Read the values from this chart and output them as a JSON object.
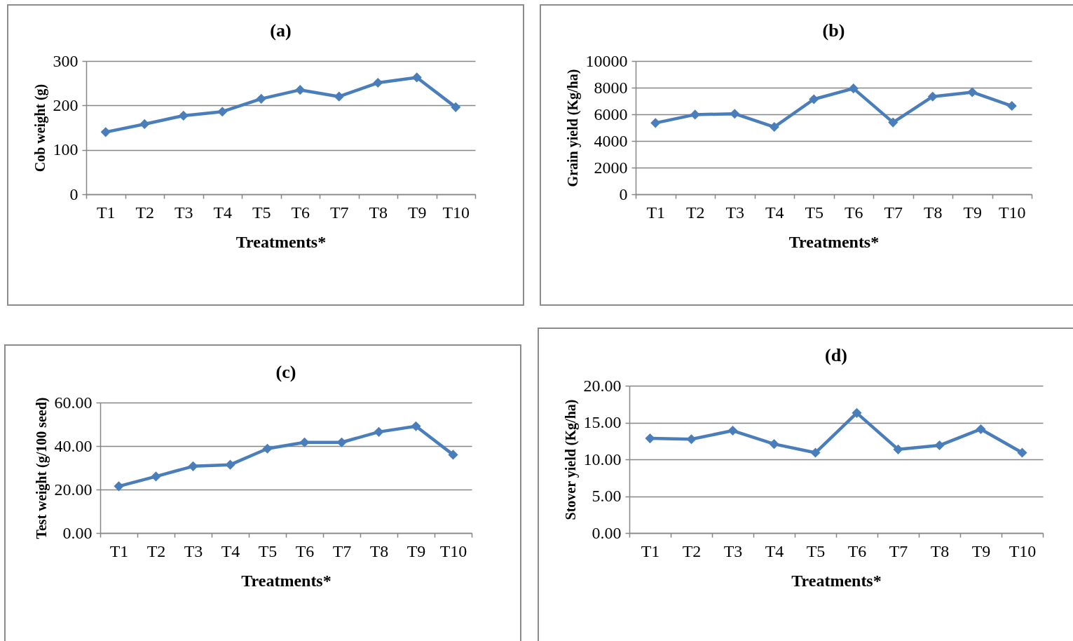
{
  "chart_data": [
    {
      "type": "line",
      "title": "(a)",
      "xlabel": "Treatments*",
      "ylabel": "Cob weight (g)",
      "categories": [
        "T1",
        "T2",
        "T3",
        "T4",
        "T5",
        "T6",
        "T7",
        "T8",
        "T9",
        "T10"
      ],
      "series": [
        {
          "color": "#4a7ebb",
          "values": [
            140,
            158,
            177,
            186,
            215,
            235,
            220,
            251,
            263,
            196
          ]
        }
      ],
      "ylim": [
        0,
        300
      ],
      "yticks": [
        0,
        100,
        200,
        300
      ],
      "grid": "y",
      "marker": "diamond"
    },
    {
      "type": "line",
      "title": "(b)",
      "xlabel": "Treatments*",
      "ylabel": "Grain yield (Kg/ha)",
      "categories": [
        "T1",
        "T2",
        "T3",
        "T4",
        "T5",
        "T6",
        "T7",
        "T8",
        "T9",
        "T10"
      ],
      "series": [
        {
          "color": "#4a7ebb",
          "values": [
            5350,
            5980,
            6040,
            5050,
            7130,
            7940,
            5390,
            7330,
            7660,
            6630
          ]
        }
      ],
      "ylim": [
        0,
        10000
      ],
      "yticks": [
        0,
        2000,
        4000,
        6000,
        8000,
        10000
      ],
      "grid": "y",
      "marker": "diamond"
    },
    {
      "type": "line",
      "title": "(c)",
      "xlabel": "Treatments*",
      "ylabel": "Test weight (g/100 seed)",
      "categories": [
        "T1",
        "T2",
        "T3",
        "T4",
        "T5",
        "T6",
        "T7",
        "T8",
        "T9",
        "T10"
      ],
      "series": [
        {
          "color": "#4a7ebb",
          "values": [
            21.5,
            26.0,
            30.7,
            31.4,
            38.8,
            41.7,
            41.7,
            46.5,
            49.1,
            36.0
          ]
        }
      ],
      "ylim": [
        0,
        60
      ],
      "yticks": [
        {
          "value": 0,
          "label": "0.00"
        },
        {
          "value": 20,
          "label": "20.00"
        },
        {
          "value": 40,
          "label": "40.00"
        },
        {
          "value": 60,
          "label": "60.00"
        }
      ],
      "grid": "y",
      "marker": "diamond"
    },
    {
      "type": "line",
      "title": "(d)",
      "xlabel": "Treatments*",
      "ylabel": "Stover yield (Kg/ha)",
      "categories": [
        "T1",
        "T2",
        "T3",
        "T4",
        "T5",
        "T6",
        "T7",
        "T8",
        "T9",
        "T10"
      ],
      "series": [
        {
          "color": "#4a7ebb",
          "values": [
            12.85,
            12.74,
            13.9,
            12.08,
            10.9,
            16.3,
            11.35,
            11.9,
            14.1,
            10.9
          ]
        }
      ],
      "ylim": [
        0,
        20
      ],
      "yticks": [
        {
          "value": 0,
          "label": "0.00"
        },
        {
          "value": 5,
          "label": "5.00"
        },
        {
          "value": 10,
          "label": "10.00"
        },
        {
          "value": 15,
          "label": "15.00"
        },
        {
          "value": 20,
          "label": "20.00"
        }
      ],
      "grid": "y",
      "marker": "diamond"
    }
  ]
}
